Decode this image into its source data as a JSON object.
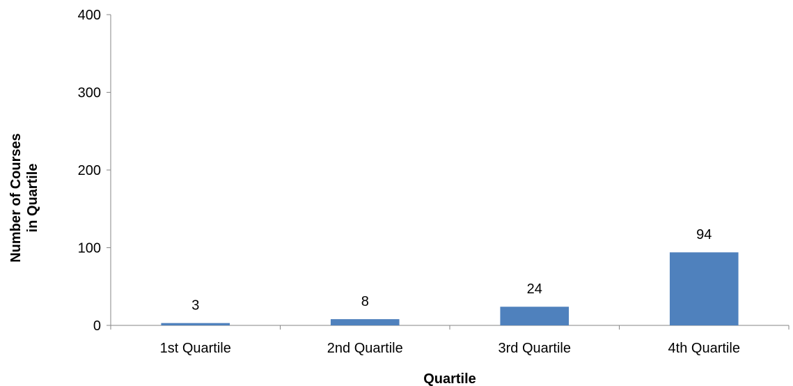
{
  "chart_data": {
    "type": "bar",
    "categories": [
      "1st Quartile",
      "2nd Quartile",
      "3rd Quartile",
      "4th Quartile"
    ],
    "values": [
      3,
      8,
      24,
      94
    ],
    "data_labels": [
      "3",
      "8",
      "24",
      "94"
    ],
    "title": "",
    "xlabel": "Quartile",
    "ylabel_lines": [
      "Number of Courses",
      "in Quartile"
    ],
    "ylim": [
      0,
      400
    ],
    "yticks": [
      0,
      100,
      200,
      300,
      400
    ],
    "ytick_labels": [
      "0",
      "100",
      "200",
      "300",
      "400"
    ],
    "grid": false,
    "legend": "none",
    "colors": {
      "bar": "#4F81BD",
      "axis": "#868686",
      "text": "#000000"
    }
  }
}
